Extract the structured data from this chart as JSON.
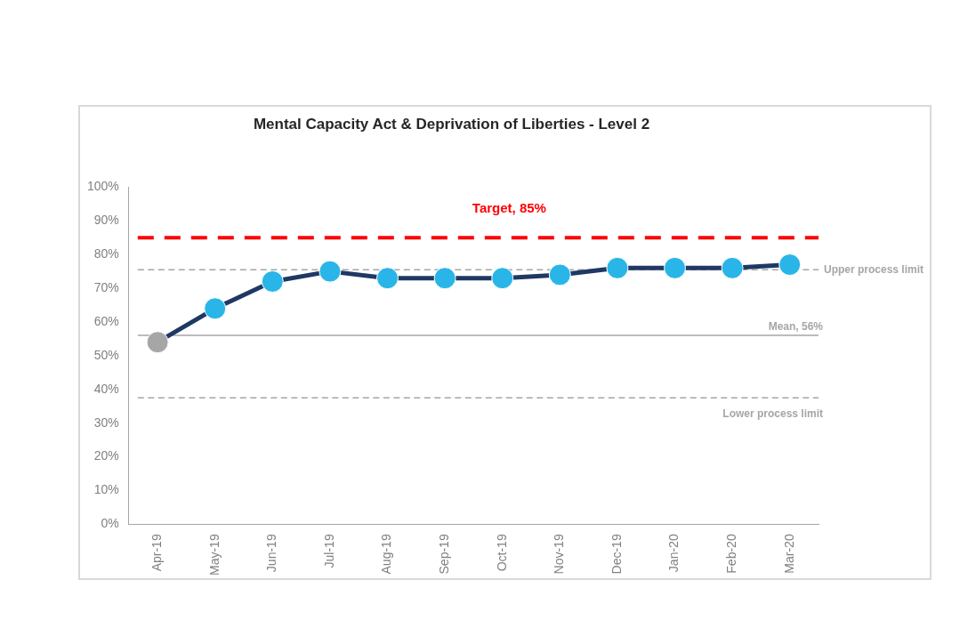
{
  "chart_data": {
    "type": "line",
    "title": "Mental Capacity Act & Deprivation of Liberties - Level 2",
    "categories": [
      "Apr-19",
      "May-19",
      "Jun-19",
      "Jul-19",
      "Aug-19",
      "Sep-19",
      "Oct-19",
      "Nov-19",
      "Dec-19",
      "Jan-20",
      "Feb-20",
      "Mar-20"
    ],
    "series": [
      {
        "color": "#1f3864",
        "values": [
          54,
          64,
          72,
          75,
          73,
          73,
          73,
          74,
          76,
          76,
          76,
          77
        ],
        "colors": [
          "#a6a6a6",
          "#29b5e8",
          "#29b5e8",
          "#29b5e8",
          "#29b5e8",
          "#29b5e8",
          "#29b5e8",
          "#29b5e8",
          "#29b5e8",
          "#29b5e8",
          "#29b5e8",
          "#29b5e8"
        ]
      }
    ],
    "ylim": [
      0,
      100
    ],
    "yticks": [
      {
        "value": 0,
        "label": "0%"
      },
      {
        "value": 10,
        "label": "10%"
      },
      {
        "value": 20,
        "label": "20%"
      },
      {
        "value": 30,
        "label": "30%"
      },
      {
        "value": 40,
        "label": "40%"
      },
      {
        "value": 50,
        "label": "50%"
      },
      {
        "value": 60,
        "label": "60%"
      },
      {
        "value": 70,
        "label": "70%"
      },
      {
        "value": 80,
        "label": "80%"
      },
      {
        "value": 90,
        "label": "90%"
      },
      {
        "value": 100,
        "label": "100%"
      }
    ],
    "ref_lines": [
      {
        "axis": "y",
        "value": 85,
        "label": "Target, 85%",
        "color": "#ff0000",
        "line_style": "dashed"
      },
      {
        "axis": "y",
        "value": 75.5,
        "label": "Upper process limit",
        "color": "#a6a6a6",
        "line_style": "dashed"
      },
      {
        "axis": "y",
        "value": 56,
        "label": "Mean, 56%",
        "color": "#a6a6a6",
        "line_style": "solid"
      },
      {
        "axis": "y",
        "value": 37.5,
        "label": "Lower process limit",
        "color": "#a6a6a6",
        "line_style": "dashed"
      }
    ],
    "grid": false,
    "legend": false,
    "marker": "circle",
    "line_style": "solid"
  }
}
